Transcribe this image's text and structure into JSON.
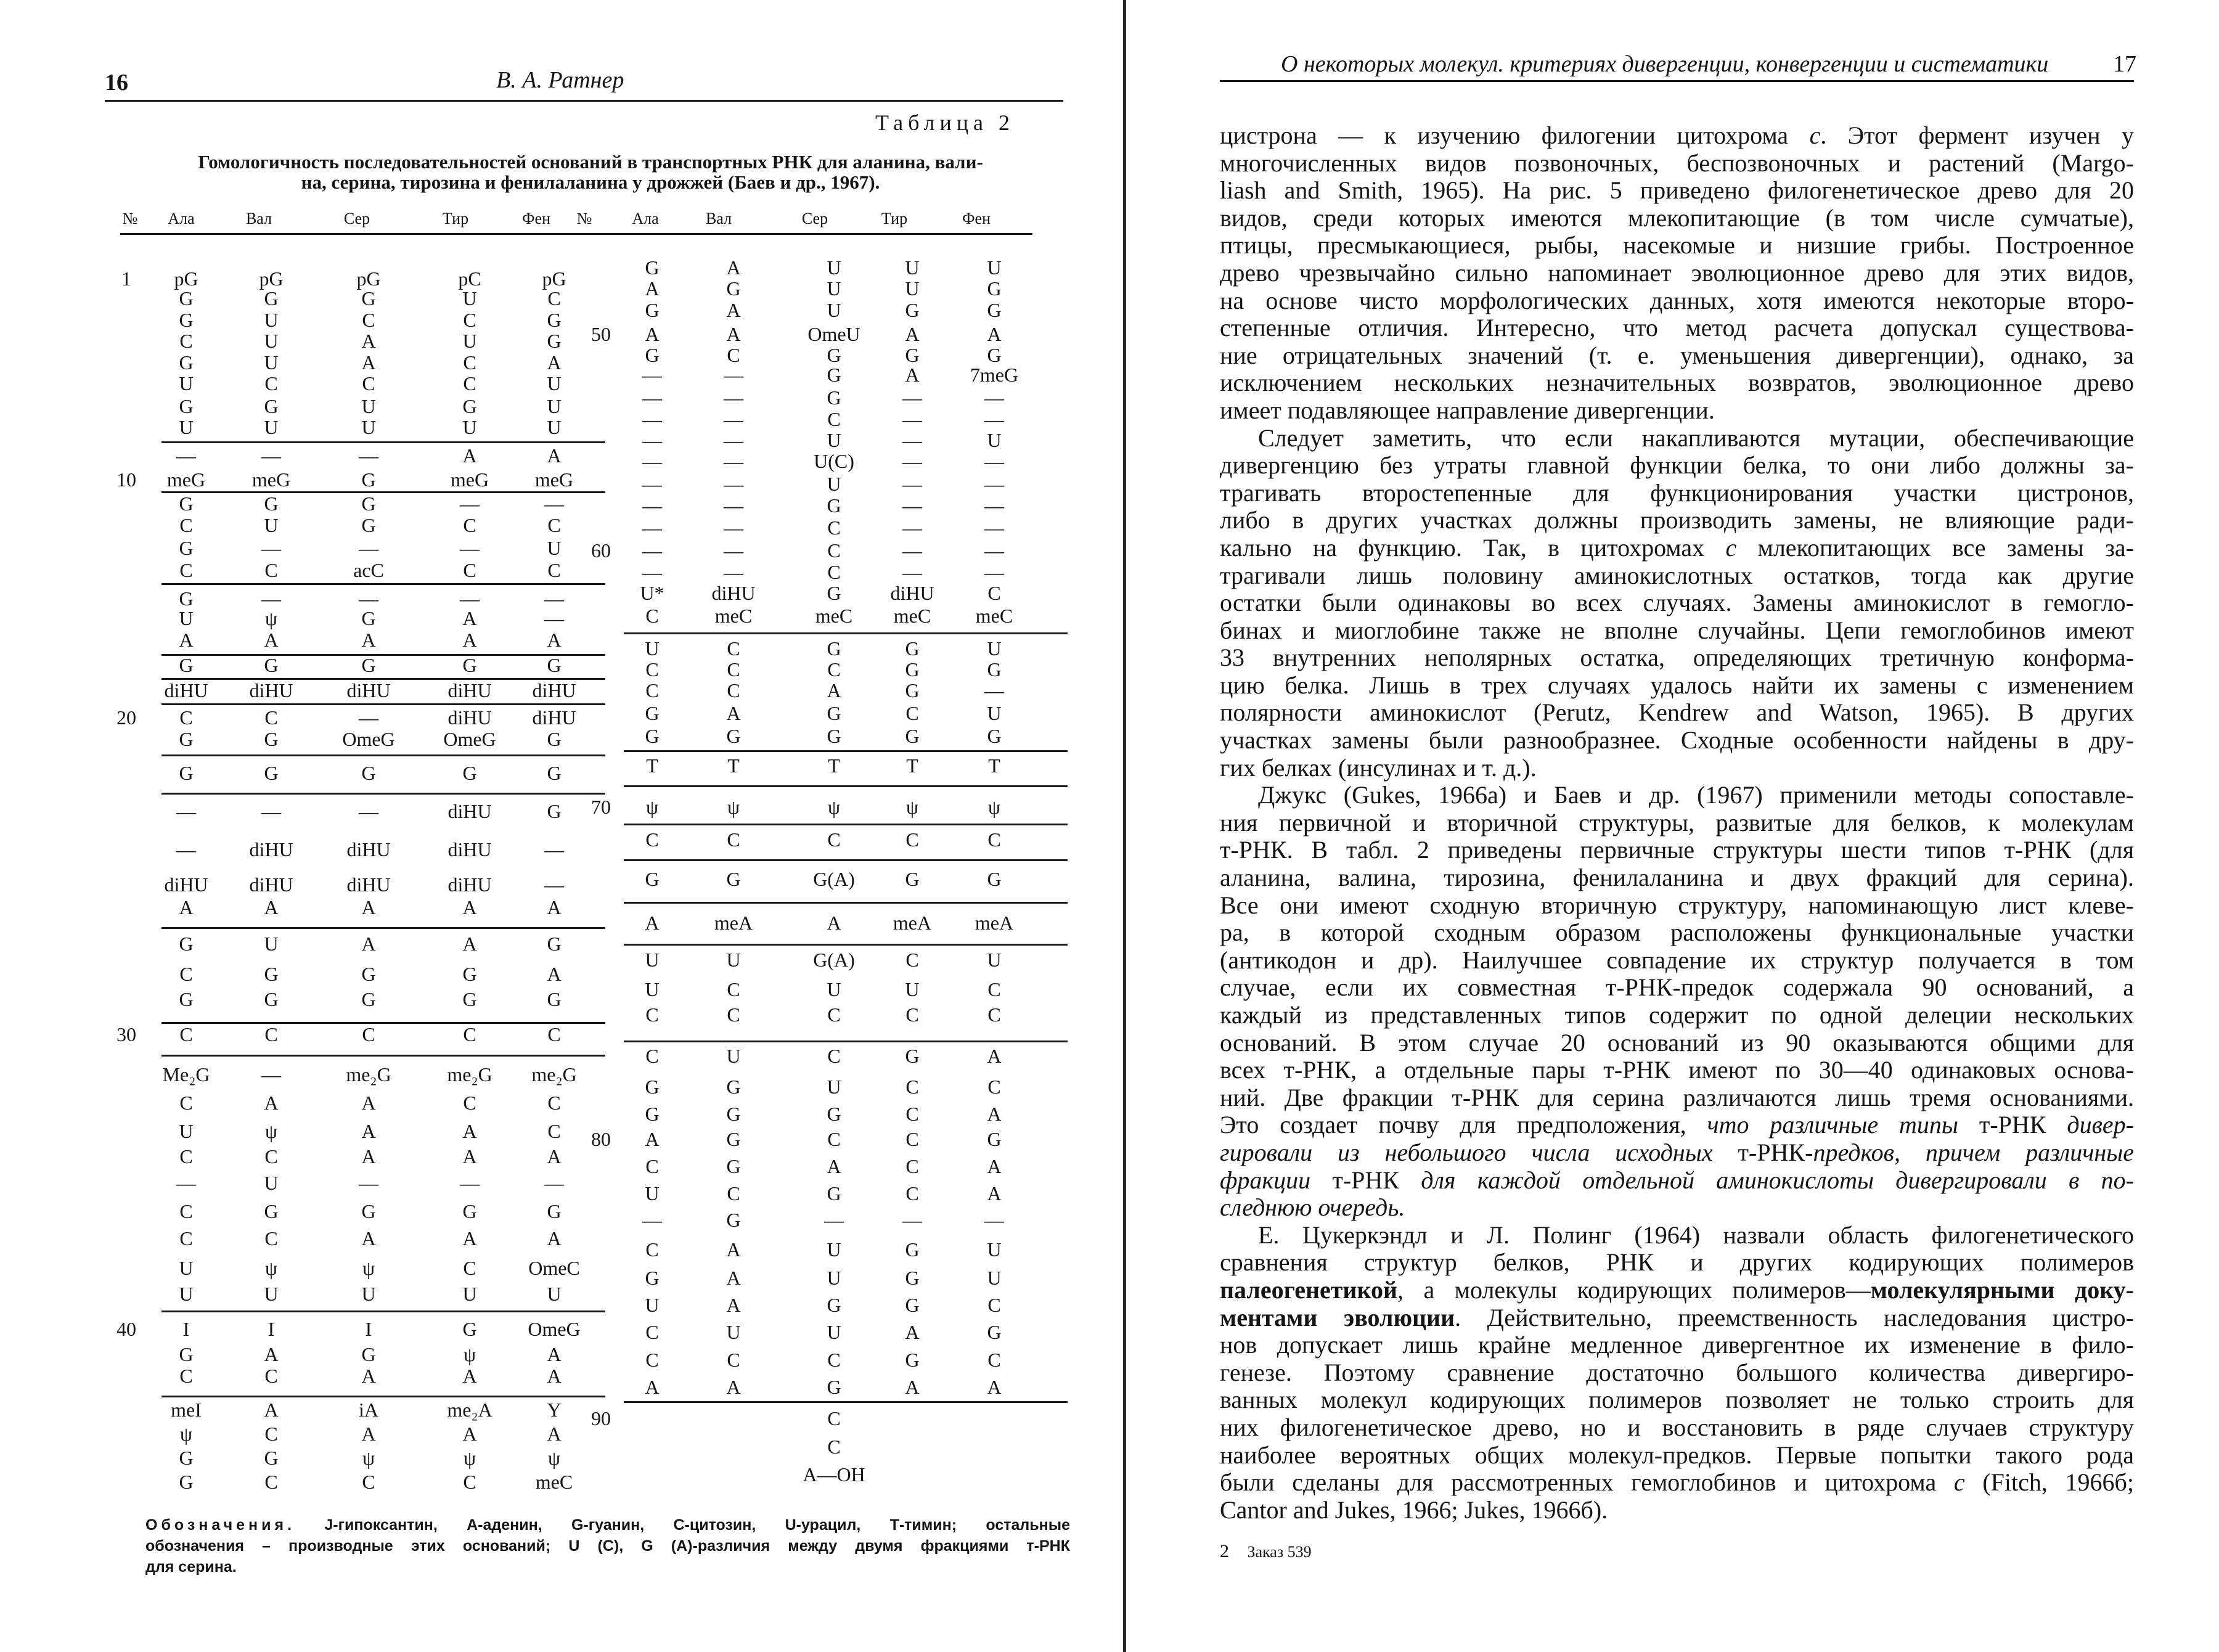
{
  "left_page": {
    "page_number": "16",
    "running_head": "В. А. Ратнер",
    "table": {
      "label": "Таблица 2",
      "caption": [
        "Гомологичность последовательностей оснований в транспортных РНК для аланина, вали-",
        "на, серина, тирозина и фенилаланина у дрожжей (Баев и др., 1967)."
      ],
      "headers": [
        "№",
        "Ала",
        "Вал",
        "Сер",
        "Тир",
        "Фен",
        "№",
        "Ала",
        "Вал",
        "Сер",
        "Тир",
        "Фен"
      ],
      "left_groups": [
        [
          [
            "1",
            "pG",
            "pG",
            "pG",
            "pC",
            "pG"
          ],
          [
            "",
            "G",
            "G",
            "G",
            "U",
            "C"
          ],
          [
            "",
            "G",
            "U",
            "C",
            "C",
            "G"
          ],
          [
            "",
            "C",
            "U",
            "A",
            "U",
            "G"
          ],
          [
            "",
            "G",
            "U",
            "A",
            "C",
            "A"
          ],
          [
            "",
            "U",
            "C",
            "C",
            "C",
            "U"
          ],
          [
            "",
            "G",
            "G",
            "U",
            "G",
            "U"
          ],
          [
            "",
            "U",
            "U",
            "U",
            "U",
            "U"
          ]
        ],
        [
          [
            "",
            "—",
            "—",
            "—",
            "A",
            "A"
          ],
          [
            "10",
            "meG",
            "meG",
            "G",
            "meG",
            "meG"
          ]
        ],
        [
          [
            "",
            "G",
            "G",
            "G",
            "—",
            "—"
          ],
          [
            "",
            "C",
            "U",
            "G",
            "C",
            "C"
          ],
          [
            "",
            "G",
            "—",
            "—",
            "—",
            "U"
          ],
          [
            "",
            "C",
            "C",
            "acC",
            "C",
            "C"
          ]
        ],
        [
          [
            "",
            "G",
            "—",
            "—",
            "—",
            "—"
          ],
          [
            "",
            "U",
            "ψ",
            "G",
            "A",
            "—"
          ],
          [
            "",
            "A",
            "A",
            "A",
            "A",
            "A"
          ]
        ],
        [
          [
            "",
            "G",
            "G",
            "G",
            "G",
            "G"
          ]
        ],
        [
          [
            "",
            "diHU",
            "diHU",
            "diHU",
            "diHU",
            "diHU"
          ]
        ],
        [
          [
            "20",
            "C",
            "C",
            "—",
            "diHU",
            "diHU"
          ],
          [
            "",
            "G",
            "G",
            "OmeG",
            "OmeG",
            "G"
          ]
        ],
        [
          [
            "",
            "G",
            "G",
            "G",
            "G",
            "G"
          ]
        ],
        [
          [
            "",
            "—",
            "—",
            "—",
            "diHU",
            "G"
          ],
          [
            "",
            "—",
            "diHU",
            "diHU",
            "diHU",
            "—"
          ],
          [
            "",
            "diHU",
            "diHU",
            "diHU",
            "diHU",
            "—"
          ],
          [
            "",
            "A",
            "A",
            "A",
            "A",
            "A"
          ]
        ],
        [
          [
            "",
            "G",
            "U",
            "A",
            "A",
            "G"
          ],
          [
            "",
            "C",
            "G",
            "G",
            "G",
            "A"
          ],
          [
            "",
            "G",
            "G",
            "G",
            "G",
            "G"
          ]
        ],
        [
          [
            "30",
            "C",
            "C",
            "C",
            "C",
            "C"
          ]
        ],
        [
          [
            "",
            "Me₂G",
            "—",
            "me₂G",
            "me₂G",
            "me₂G"
          ],
          [
            "",
            "C",
            "A",
            "A",
            "C",
            "C"
          ],
          [
            "",
            "U",
            "ψ",
            "A",
            "A",
            "C"
          ],
          [
            "",
            "C",
            "C",
            "A",
            "A",
            "A"
          ],
          [
            "",
            "—",
            "U",
            "—",
            "—",
            "—"
          ],
          [
            "",
            "C",
            "G",
            "G",
            "G",
            "G"
          ],
          [
            "",
            "C",
            "C",
            "A",
            "A",
            "A"
          ],
          [
            "",
            "U",
            "ψ",
            "ψ",
            "C",
            "OmeC"
          ],
          [
            "",
            "U",
            "U",
            "U",
            "U",
            "U"
          ]
        ],
        [
          [
            "40",
            "I",
            "I",
            "I",
            "G",
            "OmeG"
          ],
          [
            "",
            "G",
            "A",
            "G",
            "ψ",
            "A"
          ],
          [
            "",
            "C",
            "C",
            "A",
            "A",
            "A"
          ]
        ],
        [
          [
            "",
            "meI",
            "A",
            "iA",
            "me₂A",
            "Y"
          ],
          [
            "",
            "ψ",
            "C",
            "A",
            "A",
            "A"
          ],
          [
            "",
            "G",
            "G",
            "ψ",
            "ψ",
            "ψ"
          ],
          [
            "",
            "G",
            "C",
            "C",
            "C",
            "meC"
          ]
        ]
      ],
      "right_groups": [
        [
          [
            "",
            "G",
            "A",
            "U",
            "U",
            "U"
          ],
          [
            "",
            "A",
            "G",
            "U",
            "U",
            "G"
          ],
          [
            "",
            "G",
            "A",
            "U",
            "G",
            "G"
          ],
          [
            "50",
            "A",
            "A",
            "OmeU",
            "A",
            "A"
          ],
          [
            "",
            "G",
            "C",
            "G",
            "G",
            "G"
          ],
          [
            "",
            "—",
            "—",
            "G",
            "A",
            "7meG"
          ],
          [
            "",
            "—",
            "—",
            "G",
            "—",
            "—"
          ],
          [
            "",
            "—",
            "—",
            "C",
            "—",
            "—"
          ],
          [
            "",
            "—",
            "—",
            "U",
            "—",
            "U"
          ],
          [
            "",
            "—",
            "—",
            "U(C)",
            "—",
            "—"
          ],
          [
            "",
            "—",
            "—",
            "U",
            "—",
            "—"
          ],
          [
            "",
            "—",
            "—",
            "G",
            "—",
            "—"
          ],
          [
            "",
            "—",
            "—",
            "C",
            "—",
            "—"
          ],
          [
            "60",
            "—",
            "—",
            "C",
            "—",
            "—"
          ],
          [
            "",
            "—",
            "—",
            "C",
            "—",
            "—"
          ],
          [
            "",
            "U*",
            "diHU",
            "G",
            "diHU",
            "C"
          ],
          [
            "",
            "C",
            "meC",
            "meC",
            "meC",
            "meC"
          ]
        ],
        [
          [
            "",
            "U",
            "C",
            "G",
            "G",
            "U"
          ],
          [
            "",
            "C",
            "C",
            "C",
            "G",
            "G"
          ],
          [
            "",
            "C",
            "C",
            "A",
            "G",
            "—"
          ],
          [
            "",
            "G",
            "A",
            "G",
            "C",
            "U"
          ],
          [
            "",
            "G",
            "G",
            "G",
            "G",
            "G"
          ]
        ],
        [
          [
            "",
            "T",
            "T",
            "T",
            "T",
            "T"
          ]
        ],
        [
          [
            "70",
            "ψ",
            "ψ",
            "ψ",
            "ψ",
            "ψ"
          ]
        ],
        [
          [
            "",
            "C",
            "C",
            "C",
            "C",
            "C"
          ]
        ],
        [
          [
            "",
            "G",
            "G",
            "G(A)",
            "G",
            "G"
          ]
        ],
        [
          [
            "",
            "A",
            "meA",
            "A",
            "meA",
            "meA"
          ]
        ],
        [
          [
            "",
            "U",
            "U",
            "G(A)",
            "C",
            "U"
          ],
          [
            "",
            "U",
            "C",
            "U",
            "U",
            "C"
          ],
          [
            "",
            "C",
            "C",
            "C",
            "C",
            "C"
          ]
        ],
        [
          [
            "",
            "C",
            "U",
            "C",
            "G",
            "A"
          ],
          [
            "",
            "G",
            "G",
            "U",
            "C",
            "C"
          ],
          [
            "",
            "G",
            "G",
            "G",
            "C",
            "A"
          ],
          [
            "80",
            "A",
            "G",
            "C",
            "C",
            "G"
          ],
          [
            "",
            "C",
            "G",
            "A",
            "C",
            "A"
          ],
          [
            "",
            "U",
            "C",
            "G",
            "C",
            "A"
          ],
          [
            "",
            "—",
            "G",
            "—",
            "—",
            "—"
          ],
          [
            "",
            "C",
            "A",
            "U",
            "G",
            "U"
          ],
          [
            "",
            "G",
            "A",
            "U",
            "G",
            "U"
          ],
          [
            "",
            "U",
            "A",
            "G",
            "G",
            "C"
          ],
          [
            "",
            "C",
            "U",
            "U",
            "A",
            "G"
          ],
          [
            "",
            "C",
            "C",
            "C",
            "G",
            "C"
          ],
          [
            "",
            "A",
            "A",
            "G",
            "A",
            "A"
          ]
        ],
        [
          [
            "90",
            "",
            "",
            "C",
            "",
            ""
          ],
          [
            "",
            "",
            "",
            "C",
            "",
            ""
          ],
          [
            "",
            "",
            "",
            "A—OH",
            "",
            ""
          ]
        ]
      ],
      "footnote": {
        "lead": "Обозначения.",
        "lines": [
          "J-гипоксантин, А-аденин, G-гуанин, С-цитозин, U-урацил, Т-тимин; остальные",
          "обозначения – производные этих оснований; U (C), G (A)-различия между двумя фракциями т-РНК",
          "для серина."
        ]
      }
    }
  },
  "right_page": {
    "running_head": "О некоторых молекул. критериях дивергенции, конвергенции и систематики",
    "page_number": "17",
    "paragraphs": [
      {
        "indent": false,
        "lines": [
          [
            {
              "t": "цистрона — к изучению филогении цитохрома "
            },
            {
              "t": "c",
              "s": "i"
            },
            {
              "t": ". Этот фермент изучен у"
            }
          ],
          "многочисленных видов позвоночных, беспозвоночных и растений (Margo-",
          "liash and Smith, 1965). На рис. 5 приведено филогенетическое древо для 20",
          "видов, среди которых имеются млекопитающие (в том числе сумчатые),",
          "птицы, пресмыкающиеся, рыбы, насекомые и низшие грибы. Построенное",
          "древо чрезвычайно сильно напоминает эволюционное древо для этих видов,",
          "на основе чисто морфологических данных, хотя имеются некоторые второ-",
          "степенные отличия. Интересно, что метод расчета допускал существова-",
          "ние отрицательных значений (т. е. уменьшения дивергенции), однако, за",
          "исключением нескольких незначительных возвратов, эволюционное древо",
          "имеет подавляющее направление дивергенции."
        ]
      },
      {
        "indent": true,
        "lines": [
          "Следует заметить, что если накапливаются мутации, обеспечивающие",
          "дивергенцию без утраты главной функции белка, то они либо должны за-",
          "трагивать второстепенные для функционирования участки цистронов,",
          "либо в других участках должны производить замены, не влияющие ради-",
          [
            {
              "t": "кально на функцию. Так, в цитохромах "
            },
            {
              "t": "c",
              "s": "i"
            },
            {
              "t": " млекопитающих все замены за-"
            }
          ],
          "трагивали лишь половину аминокислотных остатков, тогда как другие",
          "остатки были одинаковы во всех случаях. Замены аминокислот в гемогло-",
          "бинах и миоглобине также не вполне случайны. Цепи гемоглобинов имеют",
          "33 внутренних неполярных остатка, определяющих третичную конформа-",
          "цию белка. Лишь в трех случаях удалось найти их замены с изменением",
          "полярности аминокислот (Perutz, Kendrew and Watson, 1965). В других",
          "участках замены были разнообразнее. Сходные особенности найдены в дру-",
          "гих белках (инсулинах и т. д.)."
        ]
      },
      {
        "indent": true,
        "lines": [
          "Джукс (Gukes, 1966a) и Баев и др. (1967) применили методы сопоставле-",
          "ния первичной и вторичной структуры, развитые для белков, к молекулам",
          "т-РНК. В табл. 2 приведены первичные структуры шести типов т-РНК (для",
          "аланина, валина, тирозина, фенилаланина и двух фракций для серина).",
          "Все они имеют сходную вторичную структуру, напоминающую лист клеве-",
          "ра, в которой сходным образом расположены функциональные участки",
          "(антикодон и др). Наилучшее совпадение их структур получается в том",
          "случае, если их совместная т-РНК-предок содержала 90 оснований, а",
          "каждый из представленных типов содержит по одной делеции нескольких",
          "оснований. В этом случае 20 оснований из 90 оказываются общими для",
          "всех т-РНК, а отдельные пары т-РНК имеют по 30—40 одинаковых основа-",
          "ний. Две фракции т-РНК для серина различаются лишь тремя основаниями.",
          [
            {
              "t": "Это создает почву для предположения, "
            },
            {
              "t": "что различные типы",
              "s": "i"
            },
            {
              "t": " т-РНК "
            },
            {
              "t": "дивер-",
              "s": "i"
            }
          ],
          [
            {
              "t": "гировали из небольшого числа исходных",
              "s": "i"
            },
            {
              "t": " т-РНК-"
            },
            {
              "t": "предков, причем различные",
              "s": "i"
            }
          ],
          [
            {
              "t": "фракции",
              "s": "i"
            },
            {
              "t": " т-РНК "
            },
            {
              "t": "для каждой отдельной аминокислоты дивергировали в по-",
              "s": "i"
            }
          ],
          [
            {
              "t": "следнюю очередь.",
              "s": "i"
            }
          ]
        ]
      },
      {
        "indent": true,
        "lines": [
          "Е. Цукеркэндл и Л. Полинг (1964) назвали область филогенетического",
          "сравнения структур белков, РНК и других кодирующих полимеров",
          [
            {
              "t": "палеогенетикой",
              "s": "b"
            },
            {
              "t": ", а молекулы кодирующих полимеров—"
            },
            {
              "t": "молекулярными доку-",
              "s": "b"
            }
          ],
          [
            {
              "t": "ментами эволюции",
              "s": "b"
            },
            {
              "t": ". Действительно, преемственность наследования цистро-"
            }
          ],
          "нов допускает лишь крайне медленное дивергентное их изменение в фило-",
          "генезе. Поэтому сравнение достаточно большого количества дивергиро-",
          "ванных молекул кодирующих полимеров позволяет не только строить для",
          "них филогенетическое древо, но и восстановить в ряде случаев структуру",
          "наиболее вероятных общих молекул-предков. Первые попытки такого рода",
          [
            {
              "t": "были сделаны для рассмотренных гемоглобинов и цитохрома "
            },
            {
              "t": "c",
              "s": "i"
            },
            {
              "t": " (Fitch, 1966б;"
            }
          ],
          "Cantor and Jukes, 1966; Jukes, 1966б)."
        ]
      }
    ],
    "footer": {
      "signature": "2",
      "note": "Заказ 539"
    }
  }
}
